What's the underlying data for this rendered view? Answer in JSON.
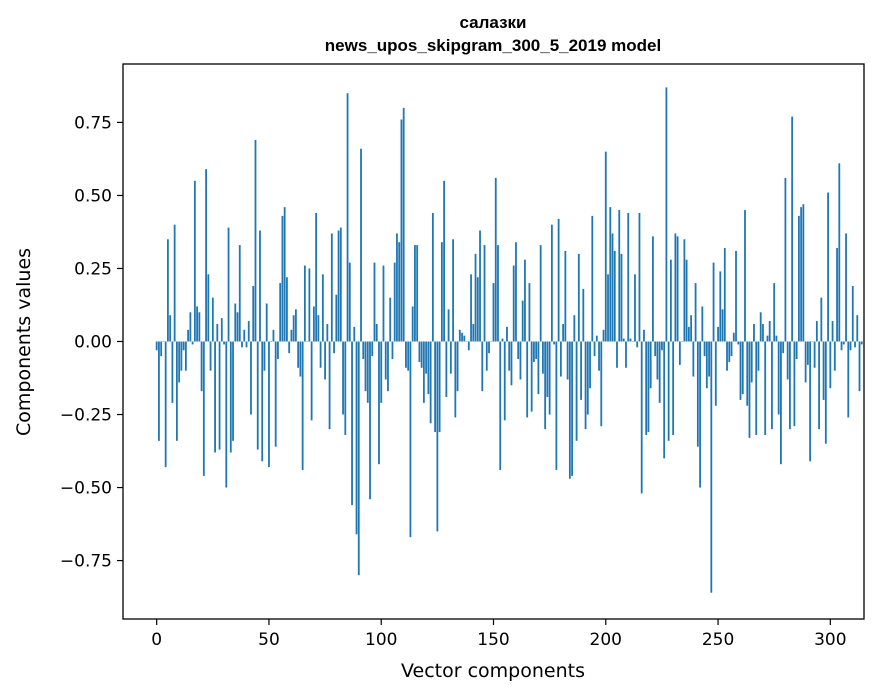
{
  "chart_data": {
    "type": "bar",
    "title": "салазки",
    "subtitle": "news_upos_skipgram_300_5_2019 model",
    "xlabel": "Vector components",
    "ylabel": "Components values",
    "xlim": [
      -15,
      315
    ],
    "ylim": [
      -0.95,
      0.95
    ],
    "xticks": [
      0,
      50,
      100,
      150,
      200,
      250,
      300
    ],
    "xtick_labels": [
      "0",
      "50",
      "100",
      "150",
      "200",
      "250",
      "300"
    ],
    "yticks": [
      -0.75,
      -0.5,
      -0.25,
      0.0,
      0.25,
      0.5,
      0.75
    ],
    "ytick_labels": [
      "−0.75",
      "−0.50",
      "−0.25",
      "0.00",
      "0.25",
      "0.50",
      "0.75"
    ],
    "bar_color": "#1f77b4",
    "grid": false,
    "legend": "none",
    "values": [
      -0.03,
      -0.34,
      -0.05,
      0.0,
      -0.43,
      0.35,
      0.09,
      -0.21,
      0.4,
      -0.34,
      -0.14,
      -0.1,
      -0.03,
      -0.1,
      0.04,
      0.1,
      -0.01,
      0.55,
      0.12,
      0.1,
      -0.17,
      -0.46,
      0.59,
      0.23,
      -0.1,
      0.15,
      -0.38,
      0.06,
      -0.37,
      0.08,
      -0.01,
      -0.5,
      0.39,
      -0.38,
      -0.34,
      0.13,
      0.1,
      0.33,
      -0.02,
      0.04,
      -0.02,
      0.07,
      -0.25,
      0.19,
      0.69,
      -0.37,
      0.38,
      -0.41,
      -0.1,
      0.13,
      -0.43,
      0.0,
      0.04,
      -0.36,
      -0.06,
      0.2,
      0.43,
      0.46,
      0.22,
      -0.04,
      0.04,
      0.09,
      0.11,
      -0.09,
      -0.12,
      -0.44,
      0.26,
      0.0,
      0.25,
      -0.27,
      0.12,
      0.44,
      0.09,
      -0.09,
      0.23,
      -0.13,
      0.06,
      -0.3,
      0.37,
      -0.04,
      0.16,
      0.38,
      0.39,
      -0.25,
      -0.32,
      0.85,
      0.27,
      -0.56,
      0.05,
      -0.66,
      -0.8,
      0.66,
      -0.06,
      -0.17,
      -0.21,
      -0.54,
      -0.05,
      0.27,
      0.06,
      -0.42,
      -0.21,
      0.26,
      -0.13,
      -0.17,
      0.15,
      -0.06,
      0.27,
      0.37,
      0.34,
      0.76,
      0.8,
      -0.09,
      -0.1,
      -0.67,
      0.12,
      0.33,
      0.33,
      -0.07,
      -0.09,
      -0.21,
      -0.11,
      -0.18,
      -0.28,
      0.44,
      -0.31,
      -0.65,
      -0.31,
      0.34,
      0.55,
      -0.19,
      0.11,
      -0.11,
      0.35,
      -0.26,
      -0.17,
      0.04,
      0.03,
      0.02,
      0.0,
      -0.03,
      0.23,
      0.06,
      0.3,
      0.22,
      0.38,
      -0.17,
      0.33,
      -0.1,
      -0.04,
      0.0,
      0.2,
      0.56,
      0.33,
      -0.44,
      0.01,
      -0.27,
      0.05,
      -0.1,
      -0.15,
      0.26,
      0.34,
      -0.06,
      -0.13,
      0.14,
      0.28,
      -0.26,
      0.2,
      -0.24,
      -0.07,
      -0.06,
      -0.18,
      0.33,
      -0.11,
      -0.3,
      -0.19,
      -0.25,
      0.4,
      -0.01,
      -0.44,
      0.42,
      -0.12,
      0.06,
      0.31,
      -0.13,
      -0.47,
      -0.46,
      0.09,
      -0.34,
      0.3,
      -0.2,
      0.18,
      -0.3,
      -0.25,
      -0.16,
      0.43,
      -0.05,
      0.02,
      -0.1,
      -0.29,
      0.04,
      0.65,
      0.23,
      0.46,
      0.37,
      0.31,
      -0.09,
      0.45,
      0.3,
      0.01,
      -0.09,
      0.44,
      0.01,
      0.0,
      0.23,
      -0.02,
      0.44,
      -0.52,
      0.04,
      -0.32,
      -0.31,
      -0.16,
      0.36,
      -0.05,
      -0.13,
      -0.21,
      -0.03,
      -0.4,
      0.87,
      -0.34,
      0.28,
      -0.32,
      0.37,
      0.36,
      -0.08,
      0.0,
      0.35,
      0.28,
      0.05,
      0.09,
      -0.12,
      0.2,
      -0.36,
      -0.5,
      0.12,
      -0.05,
      -0.16,
      -0.12,
      -0.86,
      0.27,
      -0.22,
      0.05,
      0.24,
      0.11,
      0.32,
      -0.1,
      -0.07,
      -0.05,
      0.03,
      0.31,
      -0.01,
      -0.2,
      -0.18,
      0.45,
      -0.22,
      -0.33,
      -0.14,
      0.06,
      -0.32,
      -0.1,
      0.1,
      0.06,
      -0.32,
      0.02,
      0.07,
      -0.3,
      0.2,
      0.02,
      -0.25,
      -0.42,
      -0.04,
      0.56,
      -0.13,
      -0.3,
      0.77,
      -0.29,
      -0.06,
      0.43,
      0.46,
      0.47,
      -0.14,
      -0.08,
      -0.41,
      0.0,
      -0.09,
      0.07,
      -0.3,
      0.15,
      -0.2,
      -0.35,
      0.51,
      -0.16,
      0.07,
      -0.1,
      0.32,
      0.61,
      -0.03,
      -0.01,
      0.37,
      -0.26,
      -0.03,
      0.19,
      -0.02,
      0.09,
      -0.17,
      -0.01
    ]
  }
}
